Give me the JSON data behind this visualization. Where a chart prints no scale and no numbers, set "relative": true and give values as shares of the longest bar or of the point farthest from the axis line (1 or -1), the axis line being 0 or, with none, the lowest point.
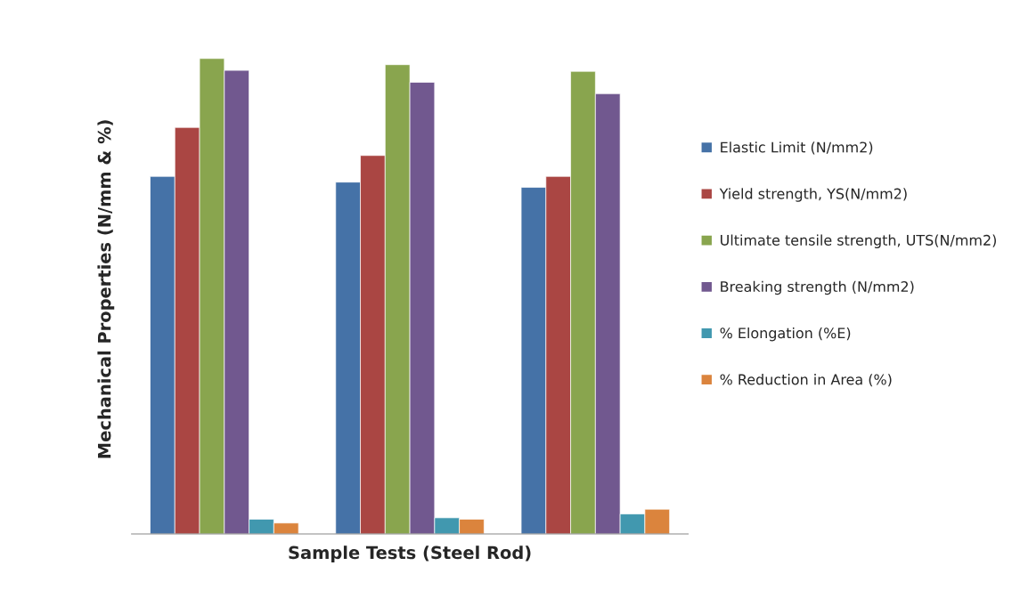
{
  "chart_data": {
    "type": "bar",
    "relative": true,
    "xlabel": "Sample Tests (Steel Rod)",
    "ylabel": "Mechanical Properties (N/mm & %)",
    "categories": [
      null,
      null,
      null
    ],
    "legend": "right",
    "series": [
      {
        "name": "Elastic Limit (N/mm2)",
        "color": "#4572a7",
        "values": [
          0.752,
          0.74,
          0.729
        ]
      },
      {
        "name": "Yield strength, YS(N/mm2)",
        "color": "#aa4643",
        "values": [
          0.855,
          0.796,
          0.752
        ]
      },
      {
        "name": "Ultimate tensile strength, UTS(N/mm2)",
        "color": "#89a54e",
        "values": [
          1.0,
          0.987,
          0.973
        ]
      },
      {
        "name": "Breaking strength (N/mm2)",
        "color": "#71588f",
        "values": [
          0.975,
          0.95,
          0.926
        ]
      },
      {
        "name": "% Elongation (%E)",
        "color": "#4198af",
        "values": [
          0.031,
          0.034,
          0.042
        ]
      },
      {
        "name": "% Reduction in Area (%)",
        "color": "#db843d",
        "values": [
          0.023,
          0.031,
          0.052
        ]
      }
    ]
  }
}
